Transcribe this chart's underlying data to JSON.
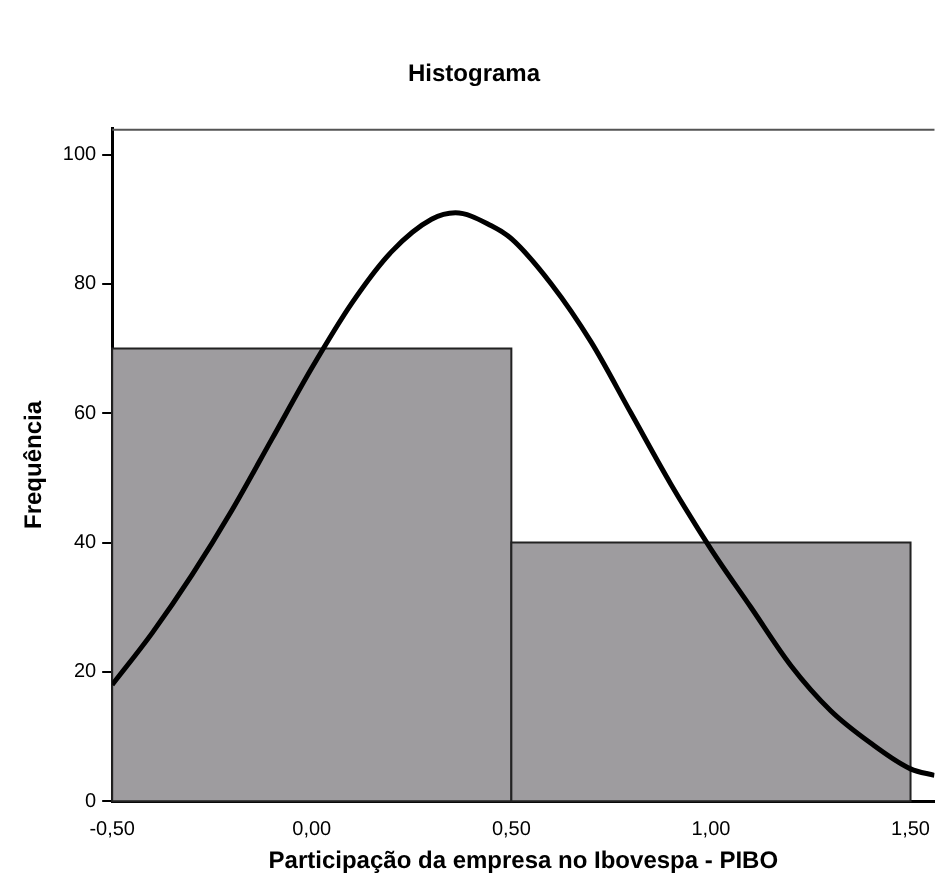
{
  "chart_data": {
    "type": "histogram",
    "title": "Histograma",
    "xlabel": "Participação da empresa no Ibovespa - PIBO",
    "ylabel": "Frequência",
    "bins": [
      -0.5,
      0.5,
      1.5
    ],
    "values": [
      70,
      40
    ],
    "color": "#9e9c9f",
    "series": [
      {
        "type": "line",
        "color": "#000000",
        "x": [
          -0.5,
          -0.4,
          -0.3,
          -0.2,
          -0.1,
          0,
          0.1,
          0.2,
          0.3,
          0.36,
          0.45,
          0.5,
          0.6,
          0.7,
          0.8,
          0.9,
          1.0,
          1.1,
          1.2,
          1.3,
          1.4,
          1.5,
          1.56
        ],
        "values": [
          18,
          26,
          35,
          45,
          56,
          67,
          77,
          85,
          90,
          91,
          89,
          87,
          80,
          71,
          60,
          49,
          39,
          30,
          21,
          14,
          9,
          5,
          4
        ]
      }
    ],
    "xlim": [
      -0.5,
      1.56
    ],
    "ylim": [
      0,
      104
    ],
    "xticks": [
      {
        "value": -0.5,
        "label": "-0,50"
      },
      {
        "value": 0,
        "label": "0,00"
      },
      {
        "value": 0.5,
        "label": "0,50"
      },
      {
        "value": 1,
        "label": "1,00"
      },
      {
        "value": 1.5,
        "label": "1,50"
      }
    ],
    "yticks": [
      0,
      20,
      40,
      60,
      80,
      100
    ],
    "grid": false,
    "legend": false,
    "marker": "none",
    "line_style": "solid"
  }
}
